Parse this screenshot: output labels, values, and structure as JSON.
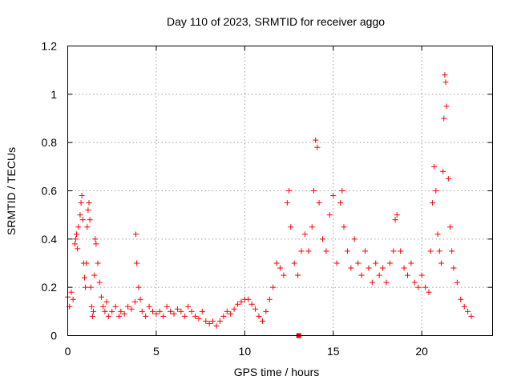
{
  "chart_data": {
    "type": "scatter",
    "title": "Day 110 of 2023, SRMTID for receiver aggo",
    "xlabel": "GPS time / hours",
    "ylabel": "SRMTID / TECUs",
    "xlim": [
      0,
      24
    ],
    "ylim": [
      0,
      1.2
    ],
    "xticks": [
      0,
      5,
      10,
      15,
      20
    ],
    "xtick_labels": [
      "0",
      "5",
      "10",
      "15",
      "20"
    ],
    "yticks": [
      0,
      0.2,
      0.4,
      0.6,
      0.8,
      1.0,
      1.2
    ],
    "ytick_labels": [
      "0",
      "0.2",
      "0.4",
      "0.6",
      "0.8",
      "1",
      "1.2"
    ],
    "grid": true,
    "marker": "+",
    "color": "#ff0000",
    "series": [
      {
        "name": "SRMTID",
        "x": [
          0.0,
          0.1,
          0.2,
          0.3,
          0.4,
          0.45,
          0.5,
          0.55,
          0.6,
          0.7,
          0.75,
          0.8,
          0.85,
          0.9,
          0.95,
          1.0,
          1.05,
          1.1,
          1.15,
          1.2,
          1.25,
          1.3,
          1.35,
          1.4,
          1.45,
          1.5,
          1.55,
          1.6,
          1.7,
          1.8,
          1.9,
          2.0,
          2.1,
          2.2,
          2.3,
          2.5,
          2.7,
          2.9,
          3.0,
          3.2,
          3.4,
          3.6,
          3.8,
          3.85,
          3.9,
          4.0,
          4.1,
          4.2,
          4.4,
          4.6,
          4.8,
          5.0,
          5.2,
          5.4,
          5.6,
          5.8,
          6.0,
          6.2,
          6.4,
          6.6,
          6.8,
          7.0,
          7.2,
          7.4,
          7.6,
          7.8,
          8.0,
          8.2,
          8.4,
          8.6,
          8.8,
          9.0,
          9.2,
          9.4,
          9.6,
          9.8,
          10.0,
          10.2,
          10.4,
          10.6,
          10.8,
          11.0,
          11.2,
          11.4,
          11.6,
          11.8,
          12.0,
          12.2,
          12.4,
          12.5,
          12.6,
          12.8,
          13.0,
          13.2,
          13.4,
          13.6,
          13.8,
          13.9,
          14.0,
          14.1,
          14.2,
          14.4,
          14.6,
          14.8,
          15.0,
          15.2,
          15.4,
          15.5,
          15.6,
          15.8,
          16.0,
          16.2,
          16.4,
          16.6,
          16.8,
          17.0,
          17.2,
          17.4,
          17.6,
          17.8,
          18.0,
          18.2,
          18.4,
          18.5,
          18.6,
          18.8,
          19.0,
          19.2,
          19.4,
          19.6,
          19.8,
          20.0,
          20.2,
          20.4,
          20.5,
          20.6,
          20.7,
          20.8,
          20.9,
          21.0,
          21.1,
          21.2,
          21.25,
          21.3,
          21.35,
          21.4,
          21.5,
          21.6,
          21.7,
          21.8,
          22.0,
          22.2,
          22.4,
          22.6,
          22.8
        ],
        "y": [
          0.16,
          0.12,
          0.18,
          0.15,
          0.38,
          0.4,
          0.42,
          0.36,
          0.45,
          0.5,
          0.55,
          0.58,
          0.48,
          0.3,
          0.24,
          0.2,
          0.3,
          0.45,
          0.52,
          0.55,
          0.48,
          0.2,
          0.12,
          0.08,
          0.1,
          0.25,
          0.4,
          0.38,
          0.3,
          0.22,
          0.16,
          0.12,
          0.1,
          0.14,
          0.08,
          0.1,
          0.12,
          0.08,
          0.1,
          0.09,
          0.12,
          0.11,
          0.14,
          0.42,
          0.3,
          0.2,
          0.15,
          0.1,
          0.08,
          0.12,
          0.1,
          0.09,
          0.1,
          0.08,
          0.12,
          0.1,
          0.09,
          0.11,
          0.1,
          0.08,
          0.12,
          0.1,
          0.08,
          0.07,
          0.1,
          0.06,
          0.05,
          0.06,
          0.04,
          0.06,
          0.08,
          0.1,
          0.09,
          0.11,
          0.13,
          0.14,
          0.15,
          0.15,
          0.13,
          0.11,
          0.08,
          0.06,
          0.1,
          0.15,
          0.2,
          0.3,
          0.28,
          0.25,
          0.55,
          0.6,
          0.45,
          0.3,
          0.25,
          0.35,
          0.42,
          0.35,
          0.45,
          0.6,
          0.81,
          0.78,
          0.55,
          0.4,
          0.35,
          0.5,
          0.58,
          0.3,
          0.55,
          0.6,
          0.45,
          0.35,
          0.28,
          0.4,
          0.3,
          0.25,
          0.35,
          0.28,
          0.22,
          0.3,
          0.25,
          0.28,
          0.22,
          0.3,
          0.35,
          0.48,
          0.5,
          0.35,
          0.28,
          0.25,
          0.3,
          0.22,
          0.2,
          0.25,
          0.2,
          0.18,
          0.35,
          0.55,
          0.7,
          0.6,
          0.42,
          0.35,
          0.3,
          0.68,
          0.9,
          1.08,
          1.05,
          0.95,
          0.65,
          0.45,
          0.35,
          0.28,
          0.22,
          0.15,
          0.12,
          0.1,
          0.08
        ],
        "outlier_square": {
          "x": 13.05,
          "y": 0.0
        }
      }
    ]
  }
}
